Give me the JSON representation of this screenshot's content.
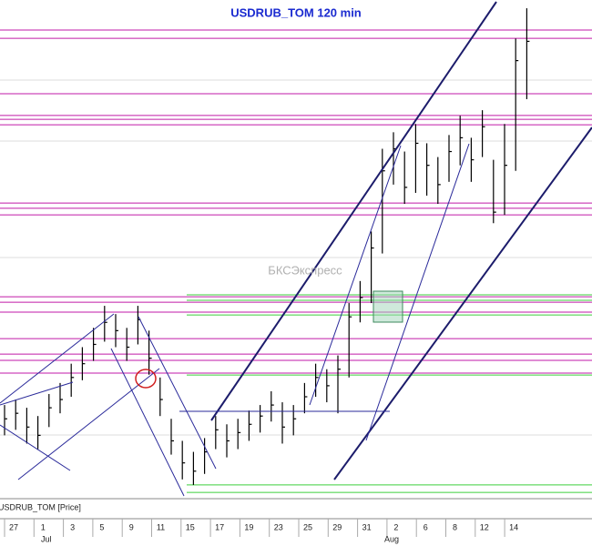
{
  "chart_data": {
    "type": "ohlc",
    "title": "USDRUB_TOM 120 min",
    "watermark": "БКСЭкспресс",
    "series_label": "USDRUB_TOM [Price]",
    "ylim": [
      54,
      72
    ],
    "bar_color": "#000000",
    "high": [
      57.3,
      57.5,
      57.2,
      56.9,
      57.7,
      58.1,
      58.8,
      59.4,
      60.1,
      60.9,
      60.6,
      60.1,
      60.9,
      60.0,
      58.3,
      56.8,
      56.0,
      55.6,
      56.1,
      56.9,
      56.6,
      56.8,
      57.1,
      57.3,
      57.8,
      57.4,
      57.3,
      58.1,
      58.8,
      58.6,
      59.1,
      61.0,
      61.8,
      63.6,
      66.6,
      67.2,
      66.5,
      67.5,
      66.8,
      66.3,
      67.1,
      67.8,
      67.0,
      68.0,
      66.2,
      67.5,
      70.6,
      71.7
    ],
    "low": [
      56.2,
      56.4,
      55.9,
      55.7,
      56.5,
      57.0,
      57.6,
      58.2,
      58.9,
      59.6,
      59.4,
      58.9,
      59.5,
      58.4,
      56.9,
      55.5,
      54.6,
      54.4,
      54.8,
      55.7,
      55.4,
      55.7,
      56.0,
      56.3,
      56.7,
      55.9,
      56.2,
      57.0,
      57.6,
      57.4,
      57.0,
      58.3,
      60.3,
      61.0,
      62.8,
      65.3,
      64.6,
      65.0,
      64.9,
      64.6,
      65.4,
      66.0,
      65.4,
      66.3,
      63.9,
      64.2,
      65.8,
      68.4
    ],
    "close": [
      56.8,
      57.0,
      56.5,
      56.2,
      57.2,
      57.5,
      58.3,
      58.8,
      59.5,
      60.3,
      60.0,
      59.4,
      60.4,
      59.0,
      57.5,
      56.0,
      55.2,
      54.9,
      55.6,
      56.4,
      56.0,
      56.3,
      56.6,
      56.9,
      57.3,
      56.5,
      56.8,
      57.6,
      58.3,
      58.0,
      58.6,
      60.5,
      61.2,
      63.0,
      65.8,
      66.6,
      65.2,
      66.8,
      66.0,
      65.3,
      66.5,
      67.0,
      66.2,
      67.4,
      64.3,
      66.0,
      69.8,
      70.5
    ],
    "magenta_levels": [
      70.91,
      70.61,
      68.6,
      67.81,
      67.67,
      67.47,
      64.63,
      64.44,
      64.2,
      61.23,
      61.03,
      60.67,
      59.71,
      59.15,
      58.92,
      58.46
    ],
    "green_levels": [
      61.3,
      61.1,
      60.57,
      58.39,
      54.4,
      54.13
    ],
    "x_labels": [
      "27",
      "1",
      "3",
      "5",
      "9",
      "11",
      "15",
      "17",
      "19",
      "23",
      "25",
      "29",
      "31",
      "2",
      "6",
      "8",
      "12",
      "14"
    ],
    "month_labels": [
      "Jul",
      "Aug"
    ]
  }
}
